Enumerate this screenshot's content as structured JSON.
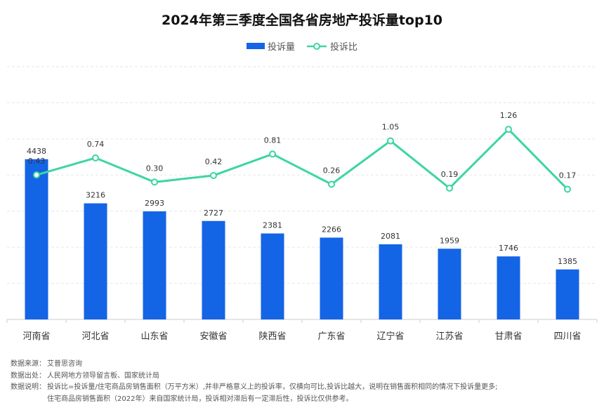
{
  "title": "2024年第三季度全国各省房地产投诉量top10",
  "colors": {
    "bar": "#1464e6",
    "line": "#3dd6a0",
    "grid": "#e6e6e6",
    "axis": "#cccccc"
  },
  "legend": [
    {
      "label": "投诉量",
      "type": "bar"
    },
    {
      "label": "投诉比",
      "type": "line"
    }
  ],
  "chart_data": {
    "type": "bar",
    "categories": [
      "河南省",
      "河北省",
      "山东省",
      "安徽省",
      "陕西省",
      "广东省",
      "辽宁省",
      "江苏省",
      "甘肃省",
      "四川省"
    ],
    "series": [
      {
        "name": "投诉量",
        "type": "bar",
        "values": [
          4438,
          3216,
          2993,
          2727,
          2381,
          2266,
          2081,
          1959,
          1746,
          1385
        ],
        "labels": [
          "4438",
          "3216",
          "2993",
          "2727",
          "2381",
          "2266",
          "2081",
          "1959",
          "1746",
          "1385"
        ]
      },
      {
        "name": "投诉比",
        "type": "line",
        "values": [
          0.43,
          0.74,
          0.3,
          0.42,
          0.81,
          0.26,
          1.05,
          0.19,
          1.26,
          0.17
        ],
        "labels": [
          "0.43",
          "0.74",
          "0.30",
          "0.42",
          "0.81",
          "0.26",
          "1.05",
          "0.19",
          "1.26",
          "0.17"
        ]
      }
    ],
    "y_bar_range": [
      0,
      7000
    ],
    "y_line_range": [
      -2.2,
      2.4
    ],
    "grid": true,
    "legend_position": "top-center"
  },
  "notes": [
    {
      "label": "数据来源：",
      "text": "艾普思咨询"
    },
    {
      "label": "数据出处：",
      "text": "人民网地方领导留言板、国家统计局"
    },
    {
      "label": "数据说明：",
      "text": "投诉比=投诉量/住宅商品房销售面积（万平方米）,并非严格意义上的投诉率，仅横向可比,投诉比越大，说明在销售面积相同的情况下投诉量更多;"
    },
    {
      "label": "",
      "text": "住宅商品房销售面积（2022年）来自国家统计局，投诉相对滞后有一定滞后性，投诉比仅供参考。"
    }
  ]
}
